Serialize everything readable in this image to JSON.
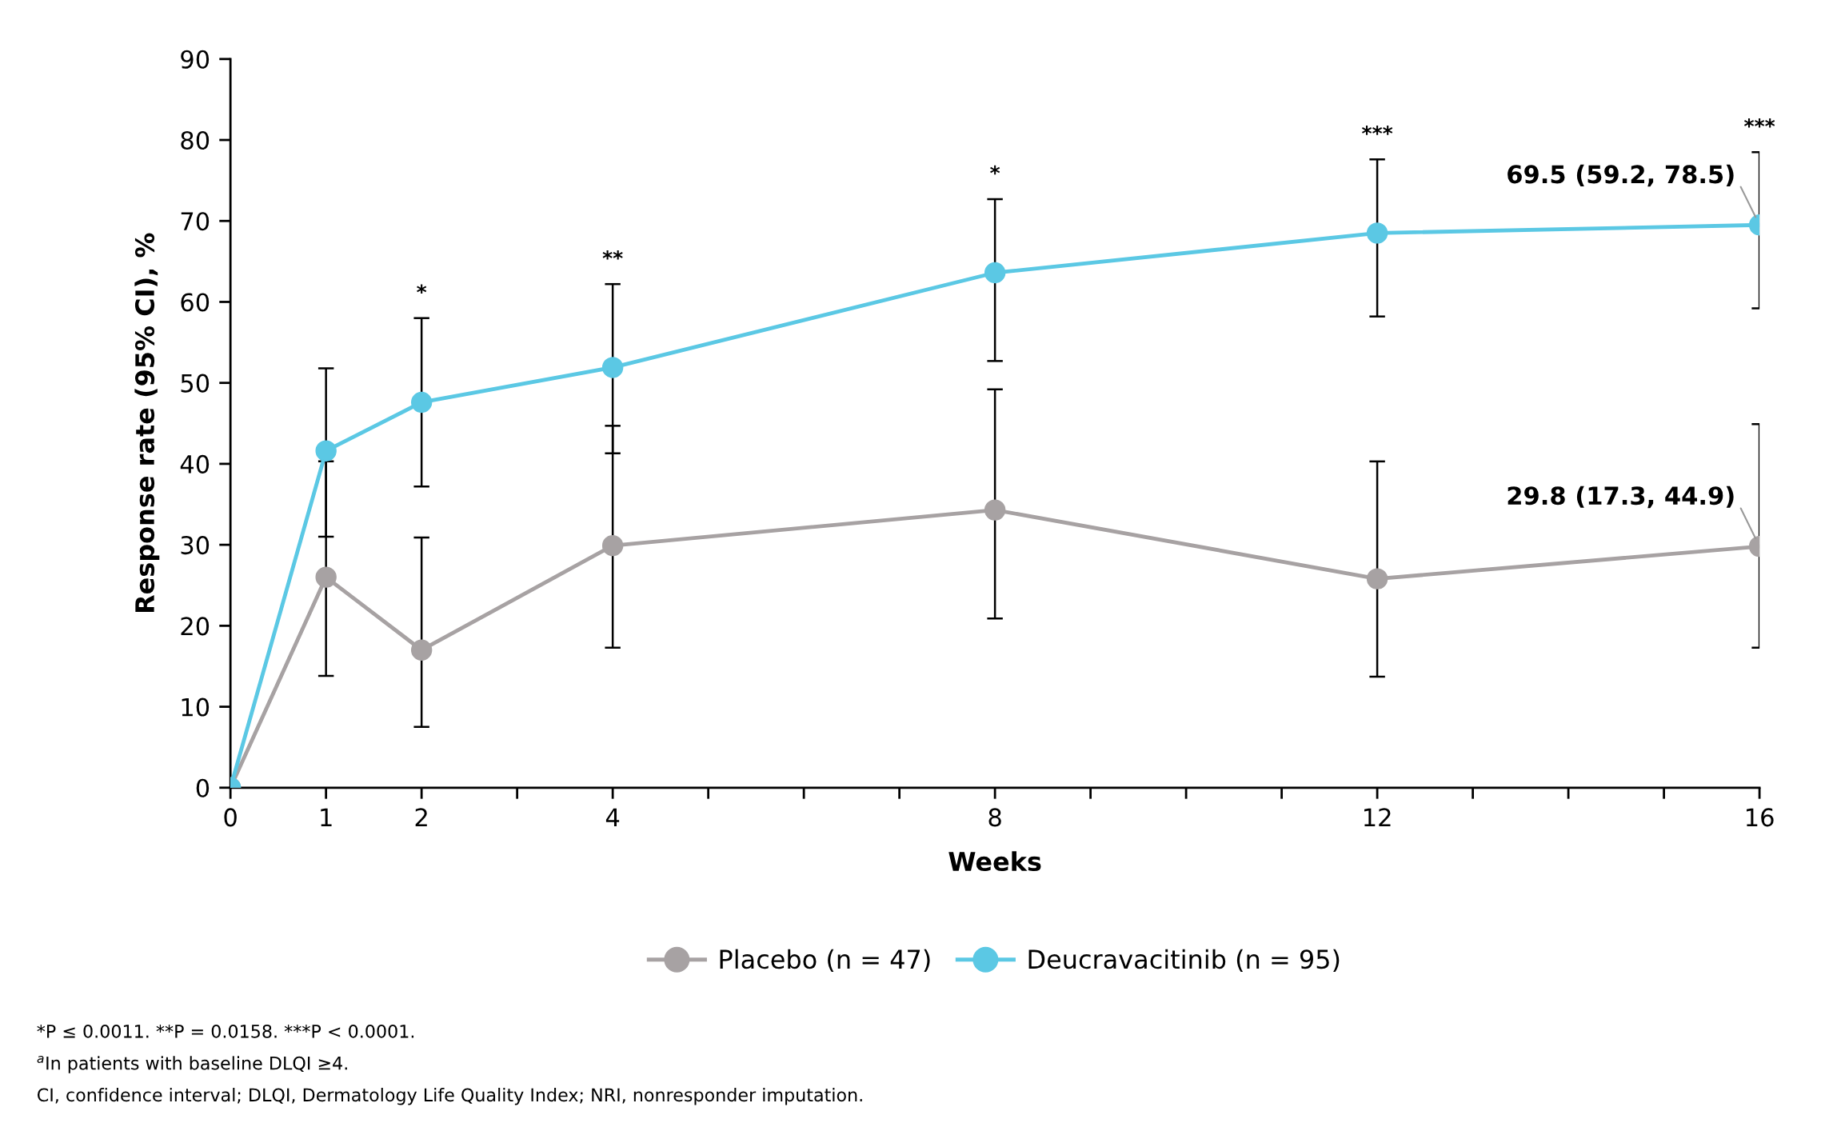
{
  "chart_data": {
    "type": "line",
    "xlabel": "Weeks",
    "ylabel": "Response rate (95% CI), %",
    "x": [
      0,
      1,
      2,
      4,
      8,
      12,
      16
    ],
    "xlim": [
      0,
      16
    ],
    "xticks": [
      0,
      1,
      2,
      {
        "value": 3,
        "label": null
      },
      4,
      {
        "value": 5,
        "label": null
      },
      {
        "value": 6,
        "label": null
      },
      {
        "value": 7,
        "label": null
      },
      8,
      {
        "value": 9,
        "label": null
      },
      {
        "value": 10,
        "label": null
      },
      {
        "value": 11,
        "label": null
      },
      12,
      {
        "value": 13,
        "label": null
      },
      {
        "value": 14,
        "label": null
      },
      {
        "value": 15,
        "label": null
      },
      16
    ],
    "ylim": [
      0,
      90
    ],
    "yticks": [
      0,
      10,
      20,
      30,
      40,
      50,
      60,
      70,
      80,
      90
    ],
    "grid": false,
    "legend": "bottom",
    "marker": "circle",
    "line_style": "solid",
    "series": [
      {
        "name": "Placebo (n = 47)",
        "color": "#a7a2a3",
        "values": [
          0,
          26.0,
          17.0,
          29.9,
          34.3,
          25.8,
          29.8
        ],
        "errors": [
          null,
          [
            13.8,
            40.3
          ],
          [
            7.5,
            30.9
          ],
          [
            17.3,
            44.7
          ],
          [
            20.9,
            49.2
          ],
          [
            13.7,
            40.3
          ],
          [
            17.3,
            44.9
          ]
        ]
      },
      {
        "name": "Deucravacitinib (n = 95)",
        "color": "#5bc8e4",
        "values": [
          0,
          41.6,
          47.6,
          51.9,
          63.6,
          68.5,
          69.5
        ],
        "errors": [
          null,
          [
            31.0,
            51.8
          ],
          [
            37.2,
            58.0
          ],
          [
            41.3,
            62.2
          ],
          [
            52.7,
            72.7
          ],
          [
            58.2,
            77.6
          ],
          [
            59.2,
            78.5
          ]
        ]
      }
    ],
    "annotations": [
      {
        "text": "69.5 (59.2, 78.5)",
        "x": 16,
        "y": 69.5
      },
      {
        "text": "29.8 (17.3, 44.9)",
        "x": 16,
        "y": 29.8
      },
      {
        "text": "*",
        "x": 2,
        "y": 58.0
      },
      {
        "text": "**",
        "x": 4,
        "y": 62.2
      },
      {
        "text": "*",
        "x": 8,
        "y": 72.7
      },
      {
        "text": "***",
        "x": 12,
        "y": 77.6
      },
      {
        "text": "***",
        "x": 16,
        "y": 78.5
      },
      "*P ≤ 0.0011. **P = 0.0158. ***P < 0.0001.",
      "$^{a}$In patients with baseline DLQI ≥4.",
      "CI, confidence interval; DLQI, Dermatology Life Quality Index; NRI, nonresponder imputation."
    ]
  }
}
